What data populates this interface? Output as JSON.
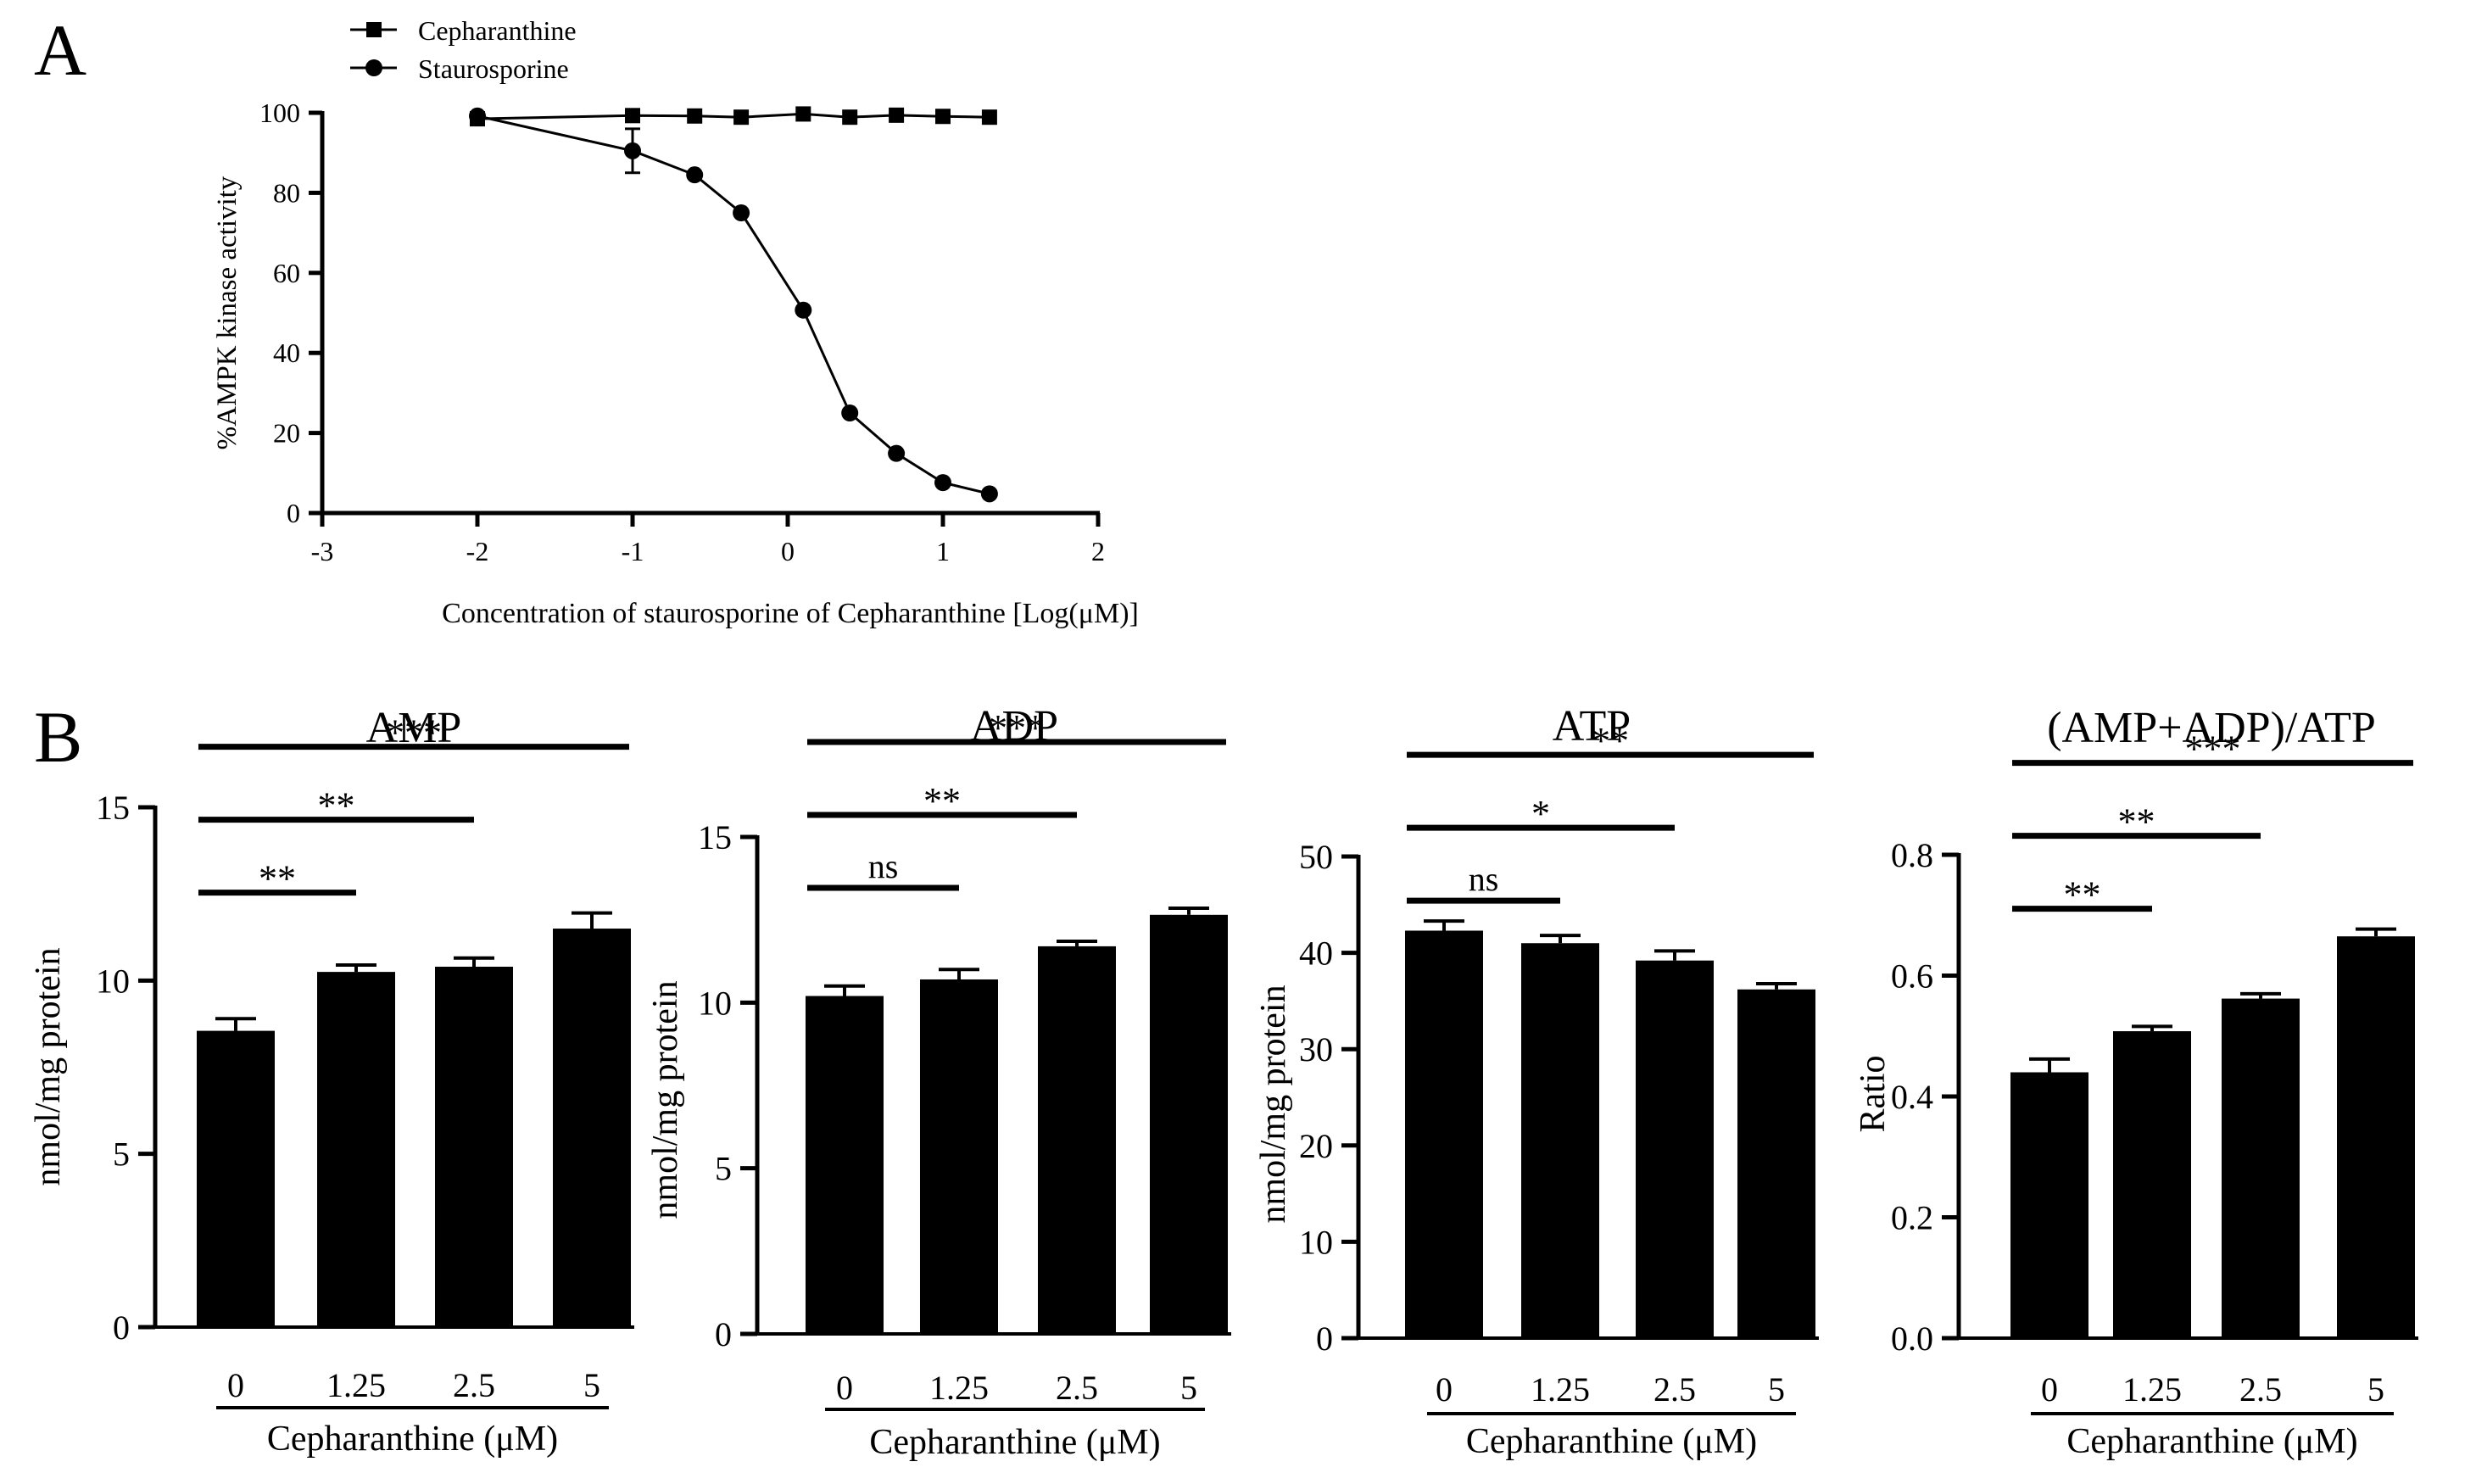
{
  "panel_labels": {
    "a": "A",
    "b": "B"
  },
  "chart_data": [
    {
      "type": "line",
      "panel": "A",
      "xlabel": "Concentration of staurosporine of Cepharanthine [Log(μM)]",
      "ylabel": "%AMPK kinase activity",
      "xlim": [
        -3,
        2
      ],
      "ylim": [
        0,
        100
      ],
      "x_ticks": [
        "-3",
        "-2",
        "-1",
        "0",
        "1",
        "2"
      ],
      "y_ticks": [
        "0",
        "20",
        "40",
        "60",
        "80",
        "100"
      ],
      "legend_position": "top-left",
      "series": [
        {
          "name": "Cepharanthine",
          "marker": "square",
          "x": [
            -2,
            -1,
            -0.6,
            -0.3,
            0.1,
            0.4,
            0.7,
            1.0,
            1.3
          ],
          "y": [
            98.5,
            99.3,
            99.2,
            98.9,
            99.7,
            98.9,
            99.4,
            99.1,
            98.9
          ]
        },
        {
          "name": "Staurosporine",
          "marker": "circle",
          "x": [
            -2,
            -1,
            -0.6,
            -0.3,
            0.1,
            0.4,
            0.7,
            1.0,
            1.3
          ],
          "y": [
            99.2,
            90.5,
            84.5,
            75.0,
            50.7,
            25.0,
            14.9,
            7.6,
            4.8
          ],
          "error": [
            0,
            5.5,
            0,
            0,
            0,
            0,
            0,
            0,
            0
          ]
        }
      ]
    },
    {
      "type": "bar",
      "panel": "B",
      "title": "AMP",
      "ylabel": "nmol/mg protein",
      "xlabel": "Cepharanthine (μM)",
      "categories": [
        "0",
        "1.25",
        "2.5",
        "5"
      ],
      "values": [
        8.55,
        10.25,
        10.4,
        11.5
      ],
      "errors": [
        0.35,
        0.2,
        0.25,
        0.45
      ],
      "ylim": [
        0,
        15
      ],
      "y_ticks": [
        "0",
        "5",
        "10",
        "15"
      ],
      "significance": [
        {
          "from": 0,
          "to": 1,
          "label": "**"
        },
        {
          "from": 0,
          "to": 2,
          "label": "**"
        },
        {
          "from": 0,
          "to": 3,
          "label": "***"
        }
      ]
    },
    {
      "type": "bar",
      "panel": "B",
      "title": "ADP",
      "ylabel": "nmol/mg protein",
      "xlabel": "Cepharanthine (μM)",
      "categories": [
        "0",
        "1.25",
        "2.5",
        "5"
      ],
      "values": [
        10.2,
        10.7,
        11.7,
        12.65
      ],
      "errors": [
        0.3,
        0.3,
        0.15,
        0.2
      ],
      "ylim": [
        0,
        15
      ],
      "y_ticks": [
        "0",
        "5",
        "10",
        "15"
      ],
      "significance": [
        {
          "from": 0,
          "to": 1,
          "label": "ns"
        },
        {
          "from": 0,
          "to": 2,
          "label": "**"
        },
        {
          "from": 0,
          "to": 3,
          "label": "***"
        }
      ]
    },
    {
      "type": "bar",
      "panel": "B",
      "title": "ATP",
      "ylabel": "nmol/mg protein",
      "xlabel": "Cepharanthine (μM)",
      "categories": [
        "0",
        "1.25",
        "2.5",
        "5"
      ],
      "values": [
        42.3,
        41.0,
        39.2,
        36.2
      ],
      "errors": [
        1.0,
        0.8,
        1.0,
        0.6
      ],
      "ylim": [
        0,
        50
      ],
      "y_ticks": [
        "0",
        "10",
        "20",
        "30",
        "40",
        "50"
      ],
      "significance": [
        {
          "from": 0,
          "to": 1,
          "label": "ns"
        },
        {
          "from": 0,
          "to": 2,
          "label": "*"
        },
        {
          "from": 0,
          "to": 3,
          "label": "**"
        }
      ]
    },
    {
      "type": "bar",
      "panel": "B",
      "title": "(AMP+ADP)/ATP",
      "ylabel": "Ratio",
      "xlabel": "Cepharanthine (μM)",
      "categories": [
        "0",
        "1.25",
        "2.5",
        "5"
      ],
      "values": [
        0.44,
        0.508,
        0.562,
        0.665
      ],
      "errors": [
        0.022,
        0.008,
        0.008,
        0.012
      ],
      "ylim": [
        0,
        0.8
      ],
      "y_ticks": [
        "0.0",
        "0.2",
        "0.4",
        "0.6",
        "0.8"
      ],
      "significance": [
        {
          "from": 0,
          "to": 1,
          "label": "**"
        },
        {
          "from": 0,
          "to": 2,
          "label": "**"
        },
        {
          "from": 0,
          "to": 3,
          "label": "***"
        }
      ]
    }
  ]
}
